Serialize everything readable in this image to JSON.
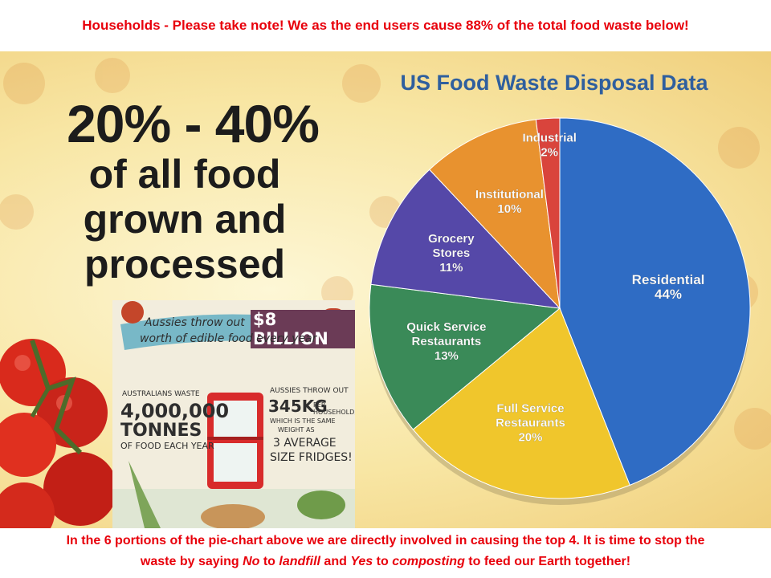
{
  "top_note": "Households - Please take note! We as the end users cause 88% of the total food waste below!",
  "headline": {
    "big": "20% - 40%",
    "line1": "of all food",
    "line2": "grown and",
    "line3": "processed"
  },
  "infographic": {
    "banner_line1": "Aussies throw out",
    "amount": "$8 BILLION",
    "banner_line2": "worth of edible food every year",
    "left_top": "AUSTRALIANS WASTE",
    "left_big": "4,000,000",
    "left_mid": "TONNES",
    "left_bottom1": "OF FOOD",
    "left_bottom2": "EACH YEAR",
    "right_top": "AUSSIES THROW OUT",
    "right_kg": "345KG",
    "right_per": "PER HOUSEHOLD,",
    "right_same1": "WHICH IS THE SAME",
    "right_same2": "WEIGHT AS",
    "right_avg": "3 AVERAGE",
    "right_fridges": "SIZE FRIDGES!"
  },
  "chart_data": {
    "type": "pie",
    "title": "US Food Waste Disposal Data",
    "categories": [
      "Residential",
      "Full Service Restaurants",
      "Quick Service Restaurants",
      "Grocery Stores",
      "Institutional",
      "Industrial"
    ],
    "values": [
      44,
      20,
      13,
      11,
      10,
      2
    ],
    "labels": [
      [
        "Residential",
        "44%"
      ],
      [
        "Full Service",
        "Restaurants",
        "20%"
      ],
      [
        "Quick Service",
        "Restaurants",
        "13%"
      ],
      [
        "Grocery",
        "Stores",
        "11%"
      ],
      [
        "Institutional",
        "10%"
      ],
      [
        "Industrial",
        "2%"
      ]
    ],
    "colors": [
      "#2f6cc4",
      "#f0c62c",
      "#3a8a58",
      "#5548a8",
      "#e8922f",
      "#d9443c"
    ],
    "start": "top, clockwise",
    "legend": "none (labels on slices)"
  },
  "bottom_note": {
    "line1": "In the 6 portions of the pie-chart above we are directly involved in causing the top 4. It is time to stop the",
    "p1": "waste by saying ",
    "no": "No",
    "p2": " to ",
    "landfill": "landfill",
    "p3": " and ",
    "yes": "Yes",
    "p4": " to ",
    "composting": "composting",
    "p5": " to feed our Earth together!"
  }
}
